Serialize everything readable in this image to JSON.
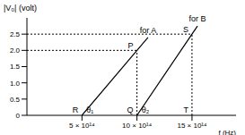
{
  "chart_data": {
    "type": "line",
    "x_label": "f (Hz)",
    "y_label": "|V₀| (volt)",
    "xlim": [
      0,
      1900000000000000.0
    ],
    "ylim": [
      0,
      3
    ],
    "xticks": [
      {
        "value": 500000000000000.0,
        "label": "5 × 10¹⁴"
      },
      {
        "value": 1000000000000000.0,
        "label": "10 × 10¹⁴"
      },
      {
        "value": 1500000000000000.0,
        "label": "15 × 10¹⁴"
      }
    ],
    "yticks": [
      0,
      0.5,
      {
        "value": 1,
        "label": "1.0"
      },
      1.5,
      {
        "value": 2,
        "label": "2.0"
      },
      2.5
    ],
    "grid": false,
    "series": [
      {
        "name": "for A",
        "color": "#000000",
        "x": [
          500000000000000.0,
          1000000000000000.0,
          1100000000000000.0
        ],
        "values": [
          0,
          2,
          2.4
        ]
      },
      {
        "name": "for B",
        "color": "#000000",
        "x": [
          1000000000000000.0,
          1500000000000000.0,
          1550000000000000.0
        ],
        "values": [
          0,
          2.5,
          2.75
        ]
      }
    ],
    "points": [
      {
        "label": "P",
        "x": 1000000000000000.0,
        "y": 2
      },
      {
        "label": "S",
        "x": 1500000000000000.0,
        "y": 2.5
      },
      {
        "label": "R",
        "x": 500000000000000.0,
        "y": 0
      },
      {
        "label": "Q",
        "x": 1000000000000000.0,
        "y": 0
      },
      {
        "label": "T",
        "x": 1500000000000000.0,
        "y": 0
      }
    ],
    "angles": [
      {
        "label": "θ₁",
        "x": 500000000000000.0,
        "y": 0
      },
      {
        "label": "θ₂",
        "x": 1000000000000000.0,
        "y": 0
      }
    ]
  }
}
